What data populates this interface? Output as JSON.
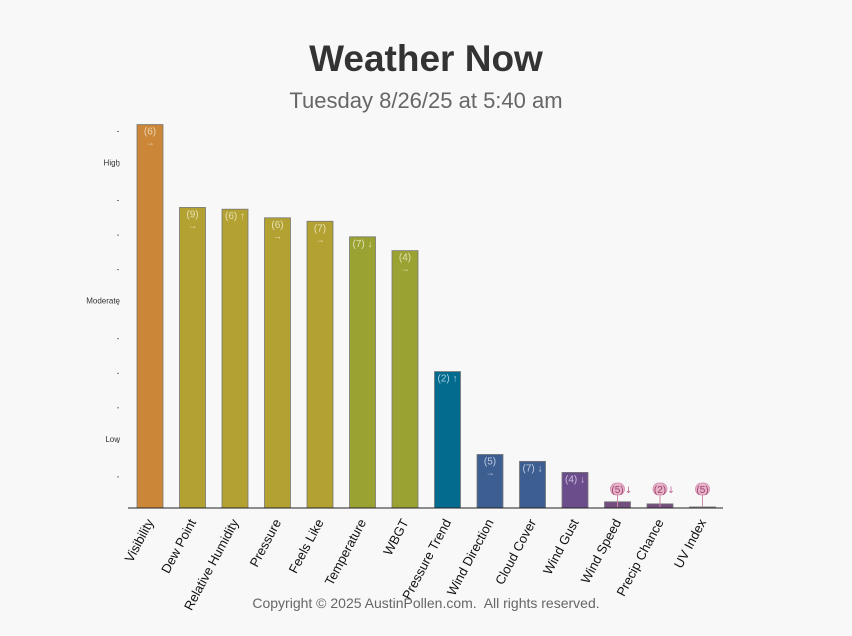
{
  "header": {
    "title": "Weather Now",
    "subtitle": "Tuesday 8/26/25 at 5:40 am"
  },
  "footer": {
    "copyright": "Copyright © 2025 AustinPollen.com.  All rights reserved."
  },
  "chart_data": {
    "type": "bar",
    "title": "Weather Now",
    "subtitle": "Tuesday 8/26/25 at 5:40 am",
    "xlabel": "",
    "ylabel": "",
    "ylim": [
      0,
      11
    ],
    "y_level_labels": [
      {
        "value": 2,
        "label": "Low"
      },
      {
        "value": 6,
        "label": "Moderate"
      },
      {
        "value": 10,
        "label": "High"
      }
    ],
    "grid": false,
    "categories": [
      "Visibility",
      "Dew Point",
      "Relative Humidity",
      "Pressure",
      "Feels Like",
      "Temperature",
      "WBGT",
      "Pressure Trend",
      "Wind Direction",
      "Cloud Cover",
      "Wind Gust",
      "Wind Speed",
      "Precip Chance",
      "UV Index"
    ],
    "values": [
      11.1,
      8.7,
      8.65,
      8.4,
      8.3,
      7.85,
      7.45,
      3.95,
      1.55,
      1.35,
      1.03,
      0.18,
      0.12,
      0.03
    ],
    "bar_labels": [
      "(6) →",
      "(9) →",
      "(6) ↑",
      "(6) →",
      "(7) →",
      "(7) ↓",
      "(4) →",
      "(2) ↑",
      "(5) →",
      "(7) ↓",
      "(4) ↓",
      "(5) ↓",
      "(2) ↓",
      "(5)"
    ],
    "colors": [
      "#cc8638",
      "#b3a131",
      "#b3a131",
      "#b3a131",
      "#b3a131",
      "#9aa231",
      "#9aa231",
      "#036b8e",
      "#3d5e90",
      "#3d5e90",
      "#6b4d8c",
      "#744e7f",
      "#744e7f",
      "#c4a2bb"
    ],
    "label_colors": [
      "#ecd6b4",
      "#e8e1b4",
      "#e8e1b4",
      "#e8e1b4",
      "#e8e1b4",
      "#dfe2b4",
      "#dfe2b4",
      "#a9d0e0",
      "#bfcbe0",
      "#bfcbe0",
      "#cdbfde",
      "#a0406f",
      "#a0406f",
      "#a0406f"
    ]
  }
}
